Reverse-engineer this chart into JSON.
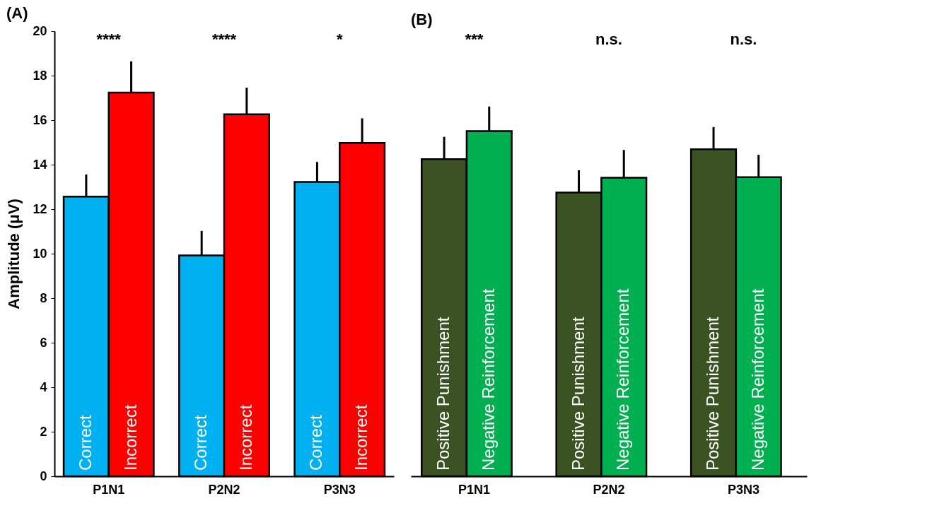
{
  "chart_data": [
    {
      "type": "bar",
      "title": "(A)",
      "ylabel": "Amplitude (μV)",
      "categories": [
        "P1N1",
        "P2N2",
        "P3N3"
      ],
      "ylim": [
        0,
        20
      ],
      "yticks": [
        0,
        2,
        4,
        6,
        8,
        10,
        12,
        14,
        16,
        18,
        20
      ],
      "grid": false,
      "series": [
        {
          "name": "Correct",
          "color": "#00b0f0",
          "values": [
            12.56,
            9.92,
            13.22
          ],
          "errors": [
            1.0,
            1.1,
            0.9
          ]
        },
        {
          "name": "Incorrect",
          "color": "#ff0000",
          "values": [
            17.24,
            16.26,
            14.98
          ],
          "errors": [
            1.4,
            1.2,
            1.1
          ]
        }
      ],
      "annotations": [
        "****",
        "****",
        "*"
      ]
    },
    {
      "type": "bar",
      "title": "(B)",
      "categories": [
        "P1N1",
        "P2N2",
        "P3N3"
      ],
      "ylim": [
        0,
        20
      ],
      "yticks": [
        0,
        2,
        4,
        6,
        8,
        10,
        12,
        14,
        16,
        18,
        20
      ],
      "grid": false,
      "tick_labels": "x",
      "series": [
        {
          "name": "Positive Punishment",
          "color": "#3b5323",
          "values": [
            14.25,
            12.75,
            14.69
          ],
          "errors": [
            1.0,
            1.0,
            1.0
          ]
        },
        {
          "name": "Negative Reinforcement",
          "color": "#00b050",
          "values": [
            15.51,
            13.41,
            13.44
          ],
          "errors": [
            1.1,
            1.25,
            1.0
          ]
        }
      ],
      "annotations": [
        "***",
        "n.s.",
        "n.s."
      ]
    }
  ]
}
